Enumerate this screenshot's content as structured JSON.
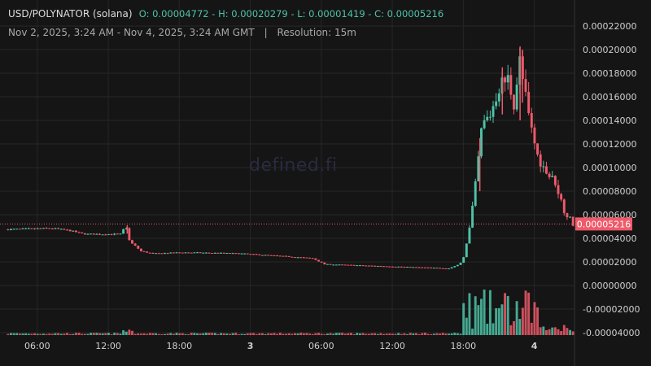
{
  "header": {
    "pair": "USD/POLYNATOR (solana)",
    "ohlc": "O: 0.00004772 - H: 0.00020279 - L: 0.00001419 - C: 0.00005216",
    "range": "Nov 2, 2025, 3:24 AM - Nov 4, 2025, 3:24 AM GMT",
    "separator": "|",
    "resolution": "Resolution: 15m"
  },
  "watermark": "defined.fi",
  "colors": {
    "background": "#151515",
    "grid": "#262626",
    "up": "#4ec3a8",
    "down": "#ef5a6a",
    "price_tag": "#ef5a6a",
    "axis_text": "#d0d0d0"
  },
  "chart_data": {
    "type": "candlestick",
    "y_axis": {
      "ticks": [
        "0.00022000",
        "0.00020000",
        "0.00018000",
        "0.00016000",
        "0.00014000",
        "0.00012000",
        "0.00010000",
        "0.00008000",
        "0.00006000",
        "0.00004000",
        "0.00002000",
        "0.00000000",
        "-0.00002000",
        "-0.00004000"
      ],
      "tick_values": [
        0.00022,
        0.0002,
        0.00018,
        0.00016,
        0.00014,
        0.00012,
        0.0001,
        8e-05,
        6e-05,
        4e-05,
        2e-05,
        0,
        -2e-05,
        -4e-05
      ],
      "range": [
        -4e-05,
        0.00022
      ]
    },
    "x_axis": {
      "ticks": [
        {
          "label": "06:00",
          "hour": 2.6,
          "bold": false
        },
        {
          "label": "12:00",
          "hour": 8.6,
          "bold": false
        },
        {
          "label": "18:00",
          "hour": 14.6,
          "bold": false
        },
        {
          "label": "3",
          "hour": 20.6,
          "bold": true
        },
        {
          "label": "06:00",
          "hour": 26.6,
          "bold": false
        },
        {
          "label": "12:00",
          "hour": 32.6,
          "bold": false
        },
        {
          "label": "18:00",
          "hour": 38.6,
          "bold": false
        },
        {
          "label": "4",
          "hour": 44.6,
          "bold": true
        }
      ],
      "range_hours": [
        0,
        48
      ]
    },
    "last_price": "0.00005216",
    "last_value": 5.216e-05,
    "grid": true,
    "price_anchors": [
      [
        0,
        4.75e-05
      ],
      [
        4,
        4.85e-05
      ],
      [
        5.5,
        4.65e-05
      ],
      [
        6.5,
        4.4e-05
      ],
      [
        7,
        4.35e-05
      ],
      [
        9.8,
        4.35e-05
      ],
      [
        10.2,
        5.1e-05
      ],
      [
        10.5,
        3.8e-05
      ],
      [
        11.5,
        2.9e-05
      ],
      [
        12.5,
        2.7e-05
      ],
      [
        15,
        2.8e-05
      ],
      [
        18,
        2.75e-05
      ],
      [
        20,
        2.7e-05
      ],
      [
        21.5,
        2.6e-05
      ],
      [
        24,
        2.45e-05
      ],
      [
        26,
        2.3e-05
      ],
      [
        27,
        1.8e-05
      ],
      [
        30,
        1.7e-05
      ],
      [
        33,
        1.6e-05
      ],
      [
        36,
        1.5e-05
      ],
      [
        37.5,
        1.45e-05
      ],
      [
        38.4,
        1.8e-05
      ],
      [
        38.7,
        2.2e-05
      ],
      [
        39.2,
        4.5e-05
      ],
      [
        39.7,
        8e-05
      ],
      [
        40.3,
        0.000135
      ],
      [
        41,
        0.000145
      ],
      [
        41.8,
        0.00017
      ],
      [
        42.5,
        0.000175
      ],
      [
        43,
        0.000155
      ],
      [
        43.5,
        0.00019
      ],
      [
        44.3,
        0.00014
      ],
      [
        45,
        0.00011
      ],
      [
        45.8,
        9.5e-05
      ],
      [
        46.5,
        8.8e-05
      ],
      [
        47.2,
        6.5e-05
      ],
      [
        48,
        5.2e-05
      ]
    ],
    "wick_spikes": [
      {
        "hour": 10.2,
        "high": 5.1e-05,
        "low": 4.4e-05
      },
      {
        "hour": 40.0,
        "high": 0.000125,
        "low": 8e-05
      },
      {
        "hour": 43.4,
        "high": 0.00020279,
        "low": 0.00014
      },
      {
        "hour": 43.6,
        "high": 0.0002,
        "low": 0.000155
      },
      {
        "hour": 41.9,
        "high": 0.000185,
        "low": 0.000145
      }
    ]
  }
}
